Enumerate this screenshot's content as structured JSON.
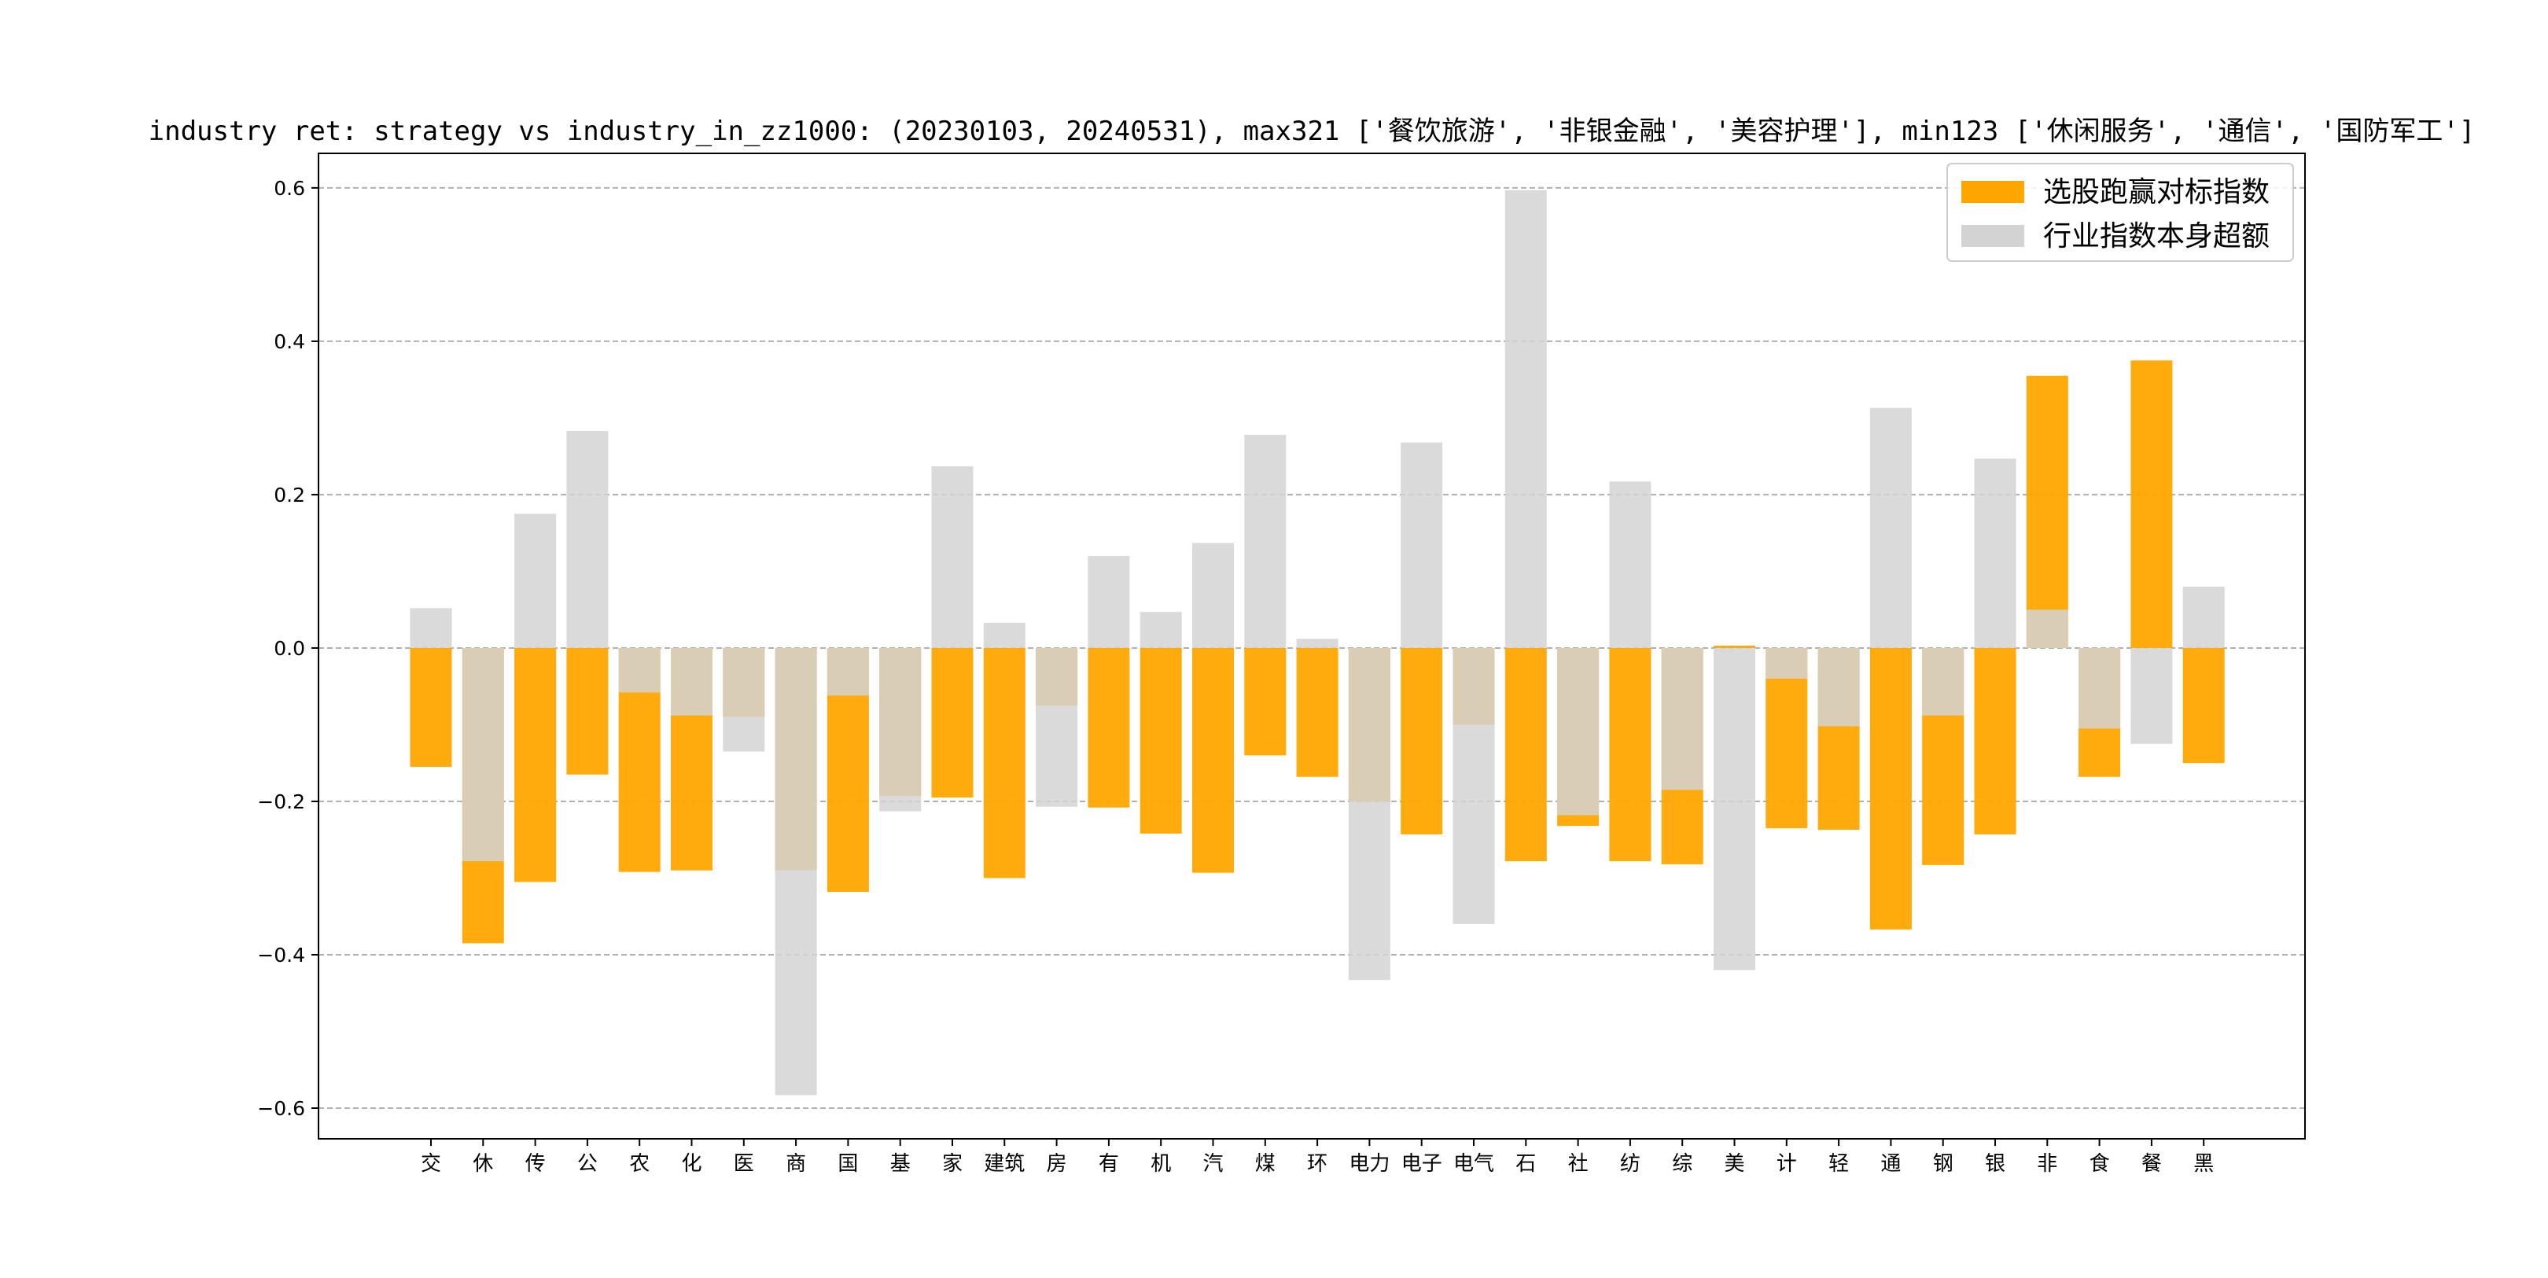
{
  "chart_data": {
    "type": "bar",
    "title": "industry ret: strategy vs industry_in_zz1000: (20230103, 20240531), max321 ['餐饮旅游', '非银金融', '美容护理'], min123 ['休闲服务', '通信', '国防军工']",
    "xlabel": "",
    "ylabel": "",
    "ylim": [
      -0.64,
      0.645
    ],
    "yticks": [
      -0.6,
      -0.4,
      -0.2,
      0.0,
      0.2,
      0.4,
      0.6
    ],
    "ytick_labels": [
      "−0.6",
      "−0.4",
      "−0.2",
      "0.0",
      "0.2",
      "0.4",
      "0.6"
    ],
    "grid": "horizontal dashed",
    "legend_position": "top-right",
    "overlay": "series drawn on top of each other with transparency",
    "categories": [
      "交",
      "休",
      "传",
      "公",
      "农",
      "化",
      "医",
      "商",
      "国",
      "基",
      "家",
      "建筑",
      "房",
      "有",
      "机",
      "汽",
      "煤",
      "环",
      "电力",
      "电子",
      "电气",
      "石",
      "社",
      "纺",
      "综",
      "美",
      "计",
      "轻",
      "通",
      "钢",
      "银",
      "非",
      "食",
      "餐",
      "黑"
    ],
    "series": [
      {
        "name": "选股跑赢对标指数",
        "color": "#FFA500",
        "values": [
          -0.155,
          -0.385,
          -0.305,
          -0.165,
          -0.292,
          -0.29,
          -0.09,
          -0.29,
          -0.318,
          -0.193,
          -0.195,
          -0.3,
          -0.075,
          -0.208,
          -0.242,
          -0.293,
          -0.14,
          -0.168,
          -0.2,
          -0.243,
          -0.1,
          -0.278,
          -0.232,
          -0.278,
          -0.282,
          0.003,
          -0.235,
          -0.237,
          -0.367,
          -0.283,
          -0.243,
          0.355,
          -0.168,
          0.375,
          -0.15
        ]
      },
      {
        "name": "行业指数本身超额",
        "color": "#D3D3D3",
        "values": [
          0.052,
          -0.278,
          0.175,
          0.283,
          -0.058,
          -0.088,
          -0.135,
          -0.583,
          -0.062,
          -0.213,
          0.237,
          0.033,
          -0.207,
          0.12,
          0.047,
          0.137,
          0.278,
          0.012,
          -0.433,
          0.268,
          -0.36,
          0.597,
          -0.218,
          0.217,
          -0.185,
          -0.42,
          -0.04,
          -0.102,
          0.313,
          -0.088,
          0.247,
          0.05,
          -0.105,
          -0.125,
          0.08
        ]
      }
    ]
  }
}
